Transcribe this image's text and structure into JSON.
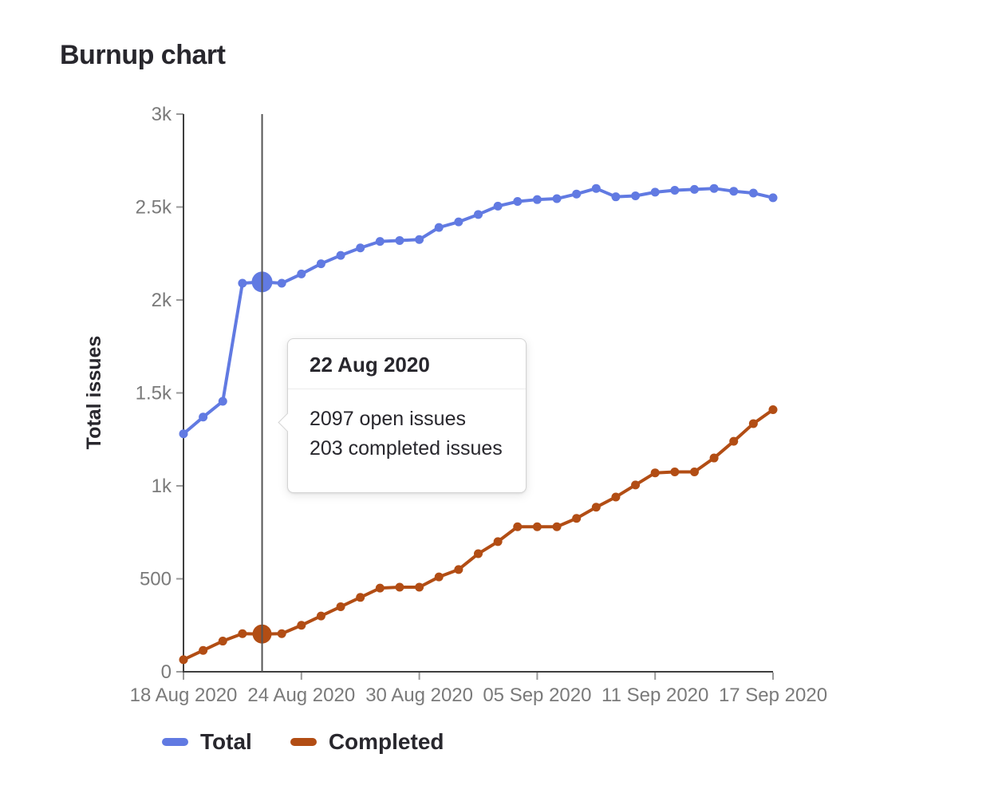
{
  "page": {
    "title": "Burnup chart"
  },
  "colors": {
    "total": "#617ae2",
    "completed": "#b24d14",
    "axis": "#3f3f3f",
    "tick": "#9a9a9a",
    "tick_text": "#7a7a7a",
    "crosshair": "#555555",
    "text_dark": "#28272d"
  },
  "tooltip": {
    "title": "22 Aug 2020",
    "lines": [
      "2097 open issues",
      "203 completed issues"
    ]
  },
  "chart_data": {
    "type": "line",
    "title": "Burnup chart",
    "xlabel": "",
    "ylabel": "Total issues",
    "ylim": [
      0,
      3000
    ],
    "grid": false,
    "legend_position": "bottom-left",
    "x": [
      "18 Aug 2020",
      "19 Aug 2020",
      "20 Aug 2020",
      "21 Aug 2020",
      "22 Aug 2020",
      "23 Aug 2020",
      "24 Aug 2020",
      "25 Aug 2020",
      "26 Aug 2020",
      "27 Aug 2020",
      "28 Aug 2020",
      "29 Aug 2020",
      "30 Aug 2020",
      "31 Aug 2020",
      "01 Sep 2020",
      "02 Sep 2020",
      "03 Sep 2020",
      "04 Sep 2020",
      "05 Sep 2020",
      "06 Sep 2020",
      "07 Sep 2020",
      "08 Sep 2020",
      "09 Sep 2020",
      "10 Sep 2020",
      "11 Sep 2020",
      "12 Sep 2020",
      "13 Sep 2020",
      "14 Sep 2020",
      "15 Sep 2020",
      "16 Sep 2020",
      "17 Sep 2020"
    ],
    "x_ticks": [
      {
        "index": 0,
        "label": "18 Aug 2020"
      },
      {
        "index": 6,
        "label": "24 Aug 2020"
      },
      {
        "index": 12,
        "label": "30 Aug 2020"
      },
      {
        "index": 18,
        "label": "05 Sep 2020"
      },
      {
        "index": 24,
        "label": "11 Sep 2020"
      },
      {
        "index": 30,
        "label": "17 Sep 2020"
      }
    ],
    "y_ticks": [
      {
        "value": 0,
        "label": "0"
      },
      {
        "value": 500,
        "label": "500"
      },
      {
        "value": 1000,
        "label": "1k"
      },
      {
        "value": 1500,
        "label": "1.5k"
      },
      {
        "value": 2000,
        "label": "2k"
      },
      {
        "value": 2500,
        "label": "2.5k"
      },
      {
        "value": 3000,
        "label": "3k"
      }
    ],
    "series": [
      {
        "name": "Total",
        "color": "#617ae2",
        "values": [
          1280,
          1370,
          1455,
          2090,
          2097,
          2090,
          2140,
          2195,
          2240,
          2280,
          2315,
          2320,
          2325,
          2390,
          2420,
          2460,
          2505,
          2530,
          2540,
          2545,
          2570,
          2600,
          2555,
          2560,
          2580,
          2590,
          2595,
          2600,
          2585,
          2575,
          2550
        ]
      },
      {
        "name": "Completed",
        "color": "#b24d14",
        "values": [
          65,
          115,
          165,
          205,
          203,
          205,
          250,
          300,
          350,
          400,
          450,
          455,
          455,
          510,
          550,
          635,
          700,
          780,
          780,
          780,
          825,
          885,
          940,
          1005,
          1070,
          1075,
          1075,
          1150,
          1240,
          1335,
          1410
        ]
      }
    ],
    "highlight": {
      "index": 4,
      "date": "22 Aug 2020",
      "open_issues": 2097,
      "completed_issues": 203
    }
  }
}
